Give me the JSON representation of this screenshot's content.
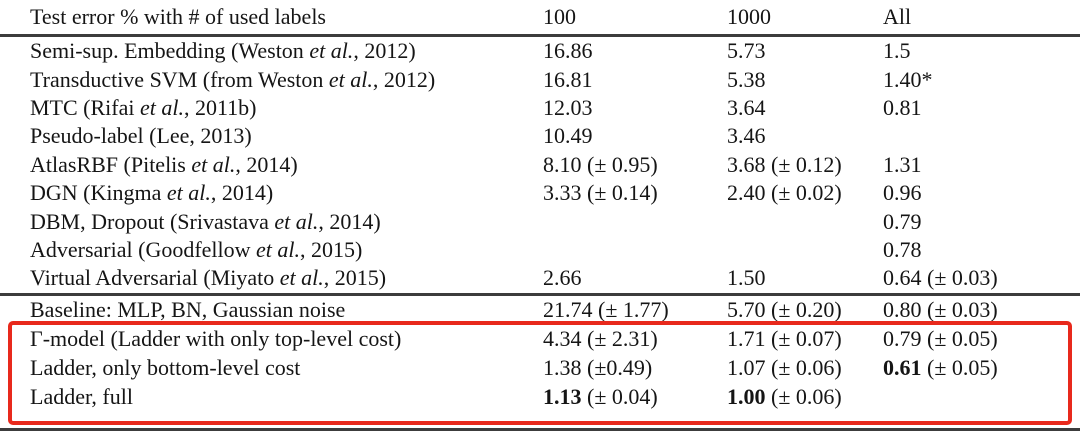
{
  "table": {
    "header": {
      "label": "Test error % with # of used labels",
      "columns": [
        "100",
        "1000",
        "All"
      ]
    },
    "sections": [
      {
        "rows": [
          {
            "label": "Semi-sup. Embedding (Weston et al., 2012)",
            "values": [
              "16.86",
              "5.73",
              "1.5"
            ]
          },
          {
            "label": "Transductive SVM (from Weston et al., 2012)",
            "values": [
              "16.81",
              "5.38",
              "1.40*"
            ]
          },
          {
            "label": "MTC (Rifai et al., 2011b)",
            "values": [
              "12.03",
              "3.64",
              "0.81"
            ]
          },
          {
            "label": "Pseudo-label (Lee, 2013)",
            "values": [
              "10.49",
              "3.46",
              ""
            ]
          },
          {
            "label": "AtlasRBF (Pitelis et al., 2014)",
            "values": [
              "8.10 (± 0.95)",
              "3.68 (± 0.12)",
              "1.31"
            ]
          },
          {
            "label": "DGN (Kingma et al., 2014)",
            "values": [
              "3.33 (± 0.14)",
              "2.40 (± 0.02)",
              "0.96"
            ]
          },
          {
            "label": "DBM, Dropout (Srivastava et al., 2014)",
            "values": [
              "",
              "",
              "0.79"
            ]
          },
          {
            "label": "Adversarial (Goodfellow et al., 2015)",
            "values": [
              "",
              "",
              "0.78"
            ]
          },
          {
            "label": "Virtual Adversarial (Miyato et al., 2015)",
            "values": [
              "2.66",
              "1.50",
              "0.64 (± 0.03)"
            ]
          }
        ]
      },
      {
        "rows": [
          {
            "label": "Baseline: MLP, BN, Gaussian noise",
            "values": [
              "21.74 (± 1.77)",
              "5.70 (± 0.20)",
              "0.80 (± 0.03)"
            ]
          }
        ]
      },
      {
        "highlighted": true,
        "rows": [
          {
            "label": "Γ-model (Ladder with only top-level cost)",
            "values": [
              "4.34 (± 2.31)",
              "1.71 (± 0.07)",
              "0.79 (± 0.05)"
            ]
          },
          {
            "label": "Ladder, only bottom-level cost",
            "values": [
              "1.38 (±0.49)",
              "1.07 (± 0.06)",
              [
                {
                  "t": "0.61",
                  "b": true
                },
                {
                  "t": " (± 0.05)"
                }
              ]
            ]
          },
          {
            "label": "Ladder, full",
            "values": [
              [
                {
                  "t": "1.13",
                  "b": true
                },
                {
                  "t": " (± 0.04)"
                }
              ],
              [
                {
                  "t": "1.00",
                  "b": true
                },
                {
                  "t": " (± 0.06)"
                }
              ],
              ""
            ]
          }
        ]
      }
    ]
  },
  "highlight_color": "#e8291c"
}
